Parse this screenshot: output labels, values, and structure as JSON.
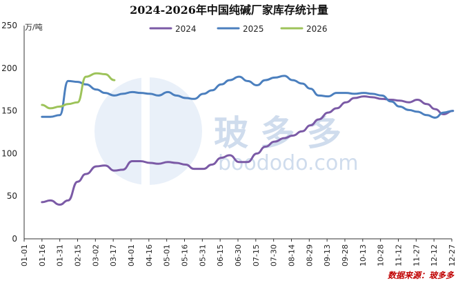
{
  "chart_data": {
    "type": "line",
    "title": "2024-2026年中国纯碱厂家库存统计量",
    "unit_label": "万/吨",
    "ylim": [
      0,
      250
    ],
    "yticks": [
      0,
      50,
      100,
      150,
      200,
      250
    ],
    "x_labels": [
      "01-01",
      "01-16",
      "01-31",
      "02-15",
      "03-02",
      "03-17",
      "04-01",
      "04-16",
      "05-01",
      "05-16",
      "05-31",
      "06-15",
      "06-30",
      "07-15",
      "07-30",
      "08-14",
      "08-29",
      "09-13",
      "09-28",
      "10-13",
      "10-28",
      "11-12",
      "11-27",
      "12-12",
      "12-27"
    ],
    "legend_position": "top",
    "source_text": "数据来源：玻多多",
    "series": [
      {
        "name": "2024",
        "color": "#7b5aa6",
        "x": [
          "01-16",
          "01-23",
          "01-31",
          "02-07",
          "02-15",
          "02-22",
          "03-02",
          "03-09",
          "03-17",
          "03-24",
          "04-01",
          "04-08",
          "04-16",
          "04-23",
          "05-01",
          "05-08",
          "05-16",
          "05-23",
          "05-31",
          "06-07",
          "06-15",
          "06-22",
          "06-30",
          "07-07",
          "07-15",
          "07-22",
          "07-30",
          "08-07",
          "08-14",
          "08-22",
          "08-29",
          "09-05",
          "09-13",
          "09-20",
          "09-28",
          "10-05",
          "10-13",
          "10-20",
          "10-28",
          "11-05",
          "11-12",
          "11-20",
          "11-27",
          "12-05",
          "12-12",
          "12-19",
          "12-27"
        ],
        "values": [
          43,
          45,
          40,
          45,
          67,
          76,
          85,
          86,
          80,
          81,
          91,
          91,
          89,
          88,
          90,
          89,
          87,
          82,
          82,
          87,
          95,
          98,
          90,
          90,
          100,
          108,
          114,
          118,
          121,
          126,
          133,
          140,
          148,
          153,
          160,
          165,
          167,
          166,
          164,
          163,
          162,
          160,
          163,
          158,
          152,
          146,
          150
        ]
      },
      {
        "name": "2025",
        "color": "#4b7fbe",
        "x": [
          "01-16",
          "01-23",
          "01-31",
          "02-07",
          "02-15",
          "02-22",
          "03-02",
          "03-09",
          "03-17",
          "03-24",
          "04-01",
          "04-08",
          "04-16",
          "04-23",
          "05-01",
          "05-08",
          "05-16",
          "05-23",
          "05-31",
          "06-07",
          "06-15",
          "06-22",
          "06-30",
          "07-07",
          "07-15",
          "07-22",
          "07-30",
          "08-07",
          "08-14",
          "08-22",
          "08-29",
          "09-05",
          "09-13",
          "09-20",
          "09-28",
          "10-05",
          "10-13",
          "10-20",
          "10-28",
          "11-05",
          "11-12",
          "11-20",
          "11-27",
          "12-05",
          "12-12",
          "12-19",
          "12-27"
        ],
        "values": [
          143,
          143,
          145,
          185,
          184,
          181,
          175,
          171,
          168,
          170,
          172,
          171,
          170,
          168,
          172,
          168,
          165,
          164,
          170,
          174,
          181,
          186,
          190,
          185,
          180,
          186,
          189,
          191,
          186,
          182,
          176,
          168,
          167,
          171,
          171,
          170,
          171,
          170,
          168,
          161,
          155,
          151,
          149,
          145,
          142,
          148,
          150
        ]
      },
      {
        "name": "2026",
        "color": "#9dc35a",
        "x": [
          "01-16",
          "01-23",
          "01-31",
          "02-07",
          "02-15",
          "02-22",
          "03-02",
          "03-09",
          "03-17"
        ],
        "values": [
          157,
          153,
          155,
          158,
          160,
          190,
          194,
          193,
          186
        ]
      }
    ]
  }
}
